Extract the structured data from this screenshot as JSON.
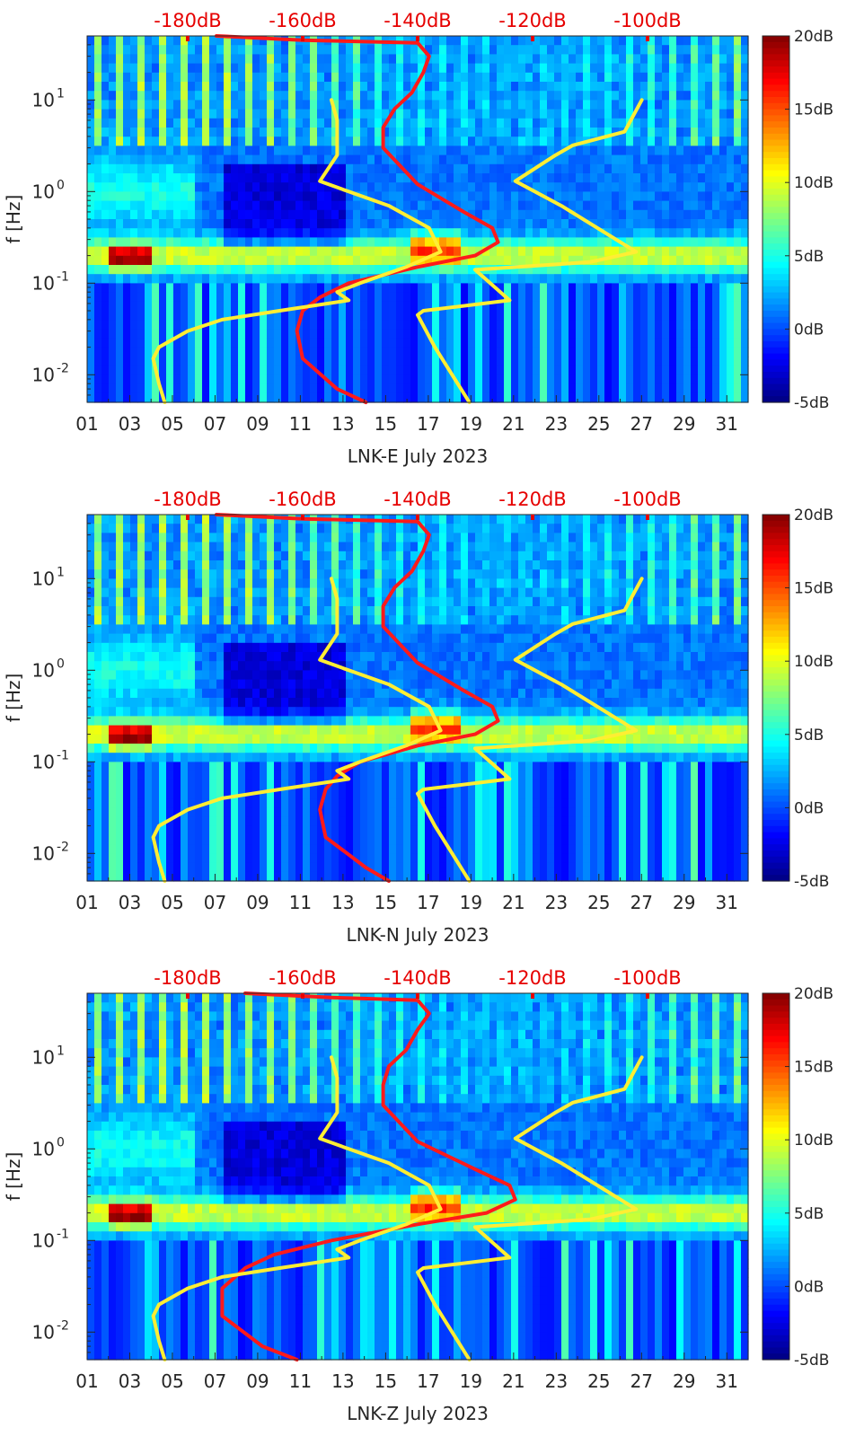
{
  "figure": {
    "title": ""
  },
  "colors": {
    "noise_model_line": "#ff1a1a",
    "reference_line": "#ffee33",
    "top_label": "#e60000",
    "colormap": "jet"
  },
  "chart_data": [
    {
      "type": "heatmap",
      "panel_name": "LNK-E",
      "xlabel": "LNK-E July 2023",
      "ylabel": "f [Hz]",
      "x_range_days": [
        1,
        32
      ],
      "y_range_hz": [
        0.005,
        50
      ],
      "y_scale": "log",
      "x_tick_labels": [
        "01",
        "03",
        "05",
        "07",
        "09",
        "11",
        "13",
        "15",
        "17",
        "19",
        "21",
        "23",
        "25",
        "27",
        "29",
        "31"
      ],
      "x_tick_values": [
        1,
        3,
        5,
        7,
        9,
        11,
        13,
        15,
        17,
        19,
        21,
        23,
        25,
        27,
        29,
        31
      ],
      "y_tick_labels": [
        "10^-2",
        "10^-1",
        "10^0",
        "10^1"
      ],
      "y_tick_values": [
        0.01,
        0.1,
        1,
        10
      ],
      "top_axis_labels": [
        "-180dB",
        "-160dB",
        "-140dB",
        "-120dB",
        "-100dB"
      ],
      "top_axis_values": [
        -180,
        -160,
        -140,
        -120,
        -100
      ],
      "colorbar": {
        "labels": [
          "20dB",
          "15dB",
          "10dB",
          "5dB",
          "0dB",
          "-5dB"
        ],
        "values": [
          20,
          15,
          10,
          5,
          0,
          -5
        ],
        "range": [
          -5,
          20
        ]
      },
      "series": [
        {
          "name": "noise model (red)",
          "points_db_hz": [
            [
              -175,
              50
            ],
            [
              -160,
              45
            ],
            [
              -140,
              42
            ],
            [
              -138,
              30
            ],
            [
              -139,
              20
            ],
            [
              -141,
              12
            ],
            [
              -144,
              8
            ],
            [
              -146,
              5
            ],
            [
              -146,
              3
            ],
            [
              -140,
              1.2
            ],
            [
              -132,
              0.6
            ],
            [
              -127,
              0.4
            ],
            [
              -126,
              0.28
            ],
            [
              -130,
              0.2
            ],
            [
              -140,
              0.15
            ],
            [
              -152,
              0.1
            ],
            [
              -157,
              0.07
            ],
            [
              -160,
              0.05
            ],
            [
              -161,
              0.03
            ],
            [
              -160,
              0.015
            ],
            [
              -154,
              0.007
            ],
            [
              -149,
              0.005
            ]
          ]
        },
        {
          "name": "reference (yellow)",
          "points_db_hz": [
            [
              -155,
              10
            ],
            [
              -154,
              6
            ],
            [
              -154,
              2.5
            ],
            [
              -157,
              1.3
            ],
            [
              -152,
              1.0
            ],
            [
              -145,
              0.7
            ],
            [
              -138,
              0.4
            ],
            [
              -136,
              0.22
            ],
            [
              -142,
              0.15
            ],
            [
              -150,
              0.1
            ],
            [
              -154,
              0.08
            ],
            [
              -152,
              0.065
            ],
            [
              -164,
              0.05
            ],
            [
              -174,
              0.04
            ],
            [
              -180,
              0.03
            ],
            [
              -185,
              0.02
            ],
            [
              -186,
              0.015
            ],
            [
              -185,
              0.008
            ],
            [
              -184,
              0.005
            ]
          ]
        },
        {
          "name": "reference-high (yellow)",
          "points_db_hz": [
            [
              -101,
              10
            ],
            [
              -104,
              4.5
            ],
            [
              -113,
              3.2
            ],
            [
              -116,
              2.5
            ],
            [
              -123,
              1.3
            ],
            [
              -115,
              0.7
            ],
            [
              -102,
              0.22
            ],
            [
              -110,
              0.17
            ],
            [
              -130,
              0.14
            ],
            [
              -124,
              0.065
            ],
            [
              -139,
              0.05
            ],
            [
              -140,
              0.045
            ],
            [
              -137,
              0.02
            ],
            [
              -131,
              0.005
            ]
          ]
        }
      ]
    },
    {
      "type": "heatmap",
      "panel_name": "LNK-N",
      "xlabel": "LNK-N July 2023",
      "ylabel": "f [Hz]",
      "x_range_days": [
        1,
        32
      ],
      "y_range_hz": [
        0.005,
        50
      ],
      "y_scale": "log",
      "x_tick_labels": [
        "01",
        "03",
        "05",
        "07",
        "09",
        "11",
        "13",
        "15",
        "17",
        "19",
        "21",
        "23",
        "25",
        "27",
        "29",
        "31"
      ],
      "x_tick_values": [
        1,
        3,
        5,
        7,
        9,
        11,
        13,
        15,
        17,
        19,
        21,
        23,
        25,
        27,
        29,
        31
      ],
      "y_tick_labels": [
        "10^-2",
        "10^-1",
        "10^0",
        "10^1"
      ],
      "y_tick_values": [
        0.01,
        0.1,
        1,
        10
      ],
      "top_axis_labels": [
        "-180dB",
        "-160dB",
        "-140dB",
        "-120dB",
        "-100dB"
      ],
      "top_axis_values": [
        -180,
        -160,
        -140,
        -120,
        -100
      ],
      "colorbar": {
        "labels": [
          "20dB",
          "15dB",
          "10dB",
          "5dB",
          "0dB",
          "-5dB"
        ],
        "values": [
          20,
          15,
          10,
          5,
          0,
          -5
        ],
        "range": [
          -5,
          20
        ]
      },
      "series": [
        {
          "name": "noise model (red)",
          "points_db_hz": [
            [
              -175,
              50
            ],
            [
              -160,
              45
            ],
            [
              -140,
              42
            ],
            [
              -138,
              30
            ],
            [
              -139,
              20
            ],
            [
              -141,
              12
            ],
            [
              -144,
              8
            ],
            [
              -146,
              5
            ],
            [
              -146,
              3
            ],
            [
              -140,
              1.2
            ],
            [
              -132,
              0.6
            ],
            [
              -127,
              0.4
            ],
            [
              -126,
              0.28
            ],
            [
              -130,
              0.2
            ],
            [
              -140,
              0.15
            ],
            [
              -150,
              0.1
            ],
            [
              -154,
              0.07
            ],
            [
              -156,
              0.05
            ],
            [
              -157,
              0.03
            ],
            [
              -156,
              0.015
            ],
            [
              -149,
              0.007
            ],
            [
              -145,
              0.005
            ]
          ]
        },
        {
          "name": "reference (yellow)",
          "points_db_hz": [
            [
              -155,
              10
            ],
            [
              -154,
              6
            ],
            [
              -154,
              2.5
            ],
            [
              -157,
              1.3
            ],
            [
              -152,
              1.0
            ],
            [
              -145,
              0.7
            ],
            [
              -138,
              0.4
            ],
            [
              -136,
              0.22
            ],
            [
              -142,
              0.15
            ],
            [
              -150,
              0.1
            ],
            [
              -154,
              0.08
            ],
            [
              -152,
              0.065
            ],
            [
              -164,
              0.05
            ],
            [
              -174,
              0.04
            ],
            [
              -180,
              0.03
            ],
            [
              -185,
              0.02
            ],
            [
              -186,
              0.015
            ],
            [
              -185,
              0.008
            ],
            [
              -184,
              0.005
            ]
          ]
        },
        {
          "name": "reference-high (yellow)",
          "points_db_hz": [
            [
              -101,
              10
            ],
            [
              -104,
              4.5
            ],
            [
              -113,
              3.2
            ],
            [
              -116,
              2.5
            ],
            [
              -123,
              1.3
            ],
            [
              -115,
              0.7
            ],
            [
              -102,
              0.22
            ],
            [
              -110,
              0.17
            ],
            [
              -130,
              0.14
            ],
            [
              -124,
              0.065
            ],
            [
              -139,
              0.05
            ],
            [
              -140,
              0.045
            ],
            [
              -137,
              0.02
            ],
            [
              -131,
              0.005
            ]
          ]
        }
      ]
    },
    {
      "type": "heatmap",
      "panel_name": "LNK-Z",
      "xlabel": "LNK-Z July 2023",
      "ylabel": "f [Hz]",
      "x_range_days": [
        1,
        32
      ],
      "y_range_hz": [
        0.005,
        50
      ],
      "y_scale": "log",
      "x_tick_labels": [
        "01",
        "03",
        "05",
        "07",
        "09",
        "11",
        "13",
        "15",
        "17",
        "19",
        "21",
        "23",
        "25",
        "27",
        "29",
        "31"
      ],
      "x_tick_values": [
        1,
        3,
        5,
        7,
        9,
        11,
        13,
        15,
        17,
        19,
        21,
        23,
        25,
        27,
        29,
        31
      ],
      "y_tick_labels": [
        "10^-2",
        "10^-1",
        "10^0",
        "10^1"
      ],
      "y_tick_values": [
        0.01,
        0.1,
        1,
        10
      ],
      "top_axis_labels": [
        "-180dB",
        "-160dB",
        "-140dB",
        "-120dB",
        "-100dB"
      ],
      "top_axis_values": [
        -180,
        -160,
        -140,
        -120,
        -100
      ],
      "colorbar": {
        "labels": [
          "20dB",
          "15dB",
          "10dB",
          "5dB",
          "0dB",
          "-5dB"
        ],
        "values": [
          20,
          15,
          10,
          5,
          0,
          -5
        ],
        "range": [
          -5,
          20
        ]
      },
      "series": [
        {
          "name": "noise model (red)",
          "points_db_hz": [
            [
              -170,
              50
            ],
            [
              -155,
              45
            ],
            [
              -140,
              42
            ],
            [
              -138,
              30
            ],
            [
              -140,
              20
            ],
            [
              -142,
              12
            ],
            [
              -145,
              8
            ],
            [
              -146,
              5
            ],
            [
              -146,
              3
            ],
            [
              -140,
              1.2
            ],
            [
              -130,
              0.6
            ],
            [
              -124,
              0.4
            ],
            [
              -123,
              0.28
            ],
            [
              -128,
              0.2
            ],
            [
              -140,
              0.15
            ],
            [
              -155,
              0.1
            ],
            [
              -165,
              0.07
            ],
            [
              -170,
              0.05
            ],
            [
              -174,
              0.03
            ],
            [
              -174,
              0.015
            ],
            [
              -167,
              0.007
            ],
            [
              -161,
              0.005
            ]
          ]
        },
        {
          "name": "reference (yellow)",
          "points_db_hz": [
            [
              -155,
              10
            ],
            [
              -154,
              6
            ],
            [
              -154,
              2.5
            ],
            [
              -157,
              1.3
            ],
            [
              -152,
              1.0
            ],
            [
              -145,
              0.7
            ],
            [
              -138,
              0.4
            ],
            [
              -136,
              0.22
            ],
            [
              -142,
              0.15
            ],
            [
              -150,
              0.1
            ],
            [
              -154,
              0.08
            ],
            [
              -152,
              0.065
            ],
            [
              -164,
              0.05
            ],
            [
              -174,
              0.04
            ],
            [
              -180,
              0.03
            ],
            [
              -185,
              0.02
            ],
            [
              -186,
              0.015
            ],
            [
              -185,
              0.008
            ],
            [
              -184,
              0.005
            ]
          ]
        },
        {
          "name": "reference-high (yellow)",
          "points_db_hz": [
            [
              -101,
              10
            ],
            [
              -104,
              4.5
            ],
            [
              -113,
              3.2
            ],
            [
              -116,
              2.5
            ],
            [
              -123,
              1.3
            ],
            [
              -115,
              0.7
            ],
            [
              -102,
              0.22
            ],
            [
              -110,
              0.17
            ],
            [
              -130,
              0.14
            ],
            [
              -124,
              0.065
            ],
            [
              -139,
              0.05
            ],
            [
              -140,
              0.045
            ],
            [
              -137,
              0.02
            ],
            [
              -131,
              0.005
            ]
          ]
        }
      ]
    }
  ]
}
